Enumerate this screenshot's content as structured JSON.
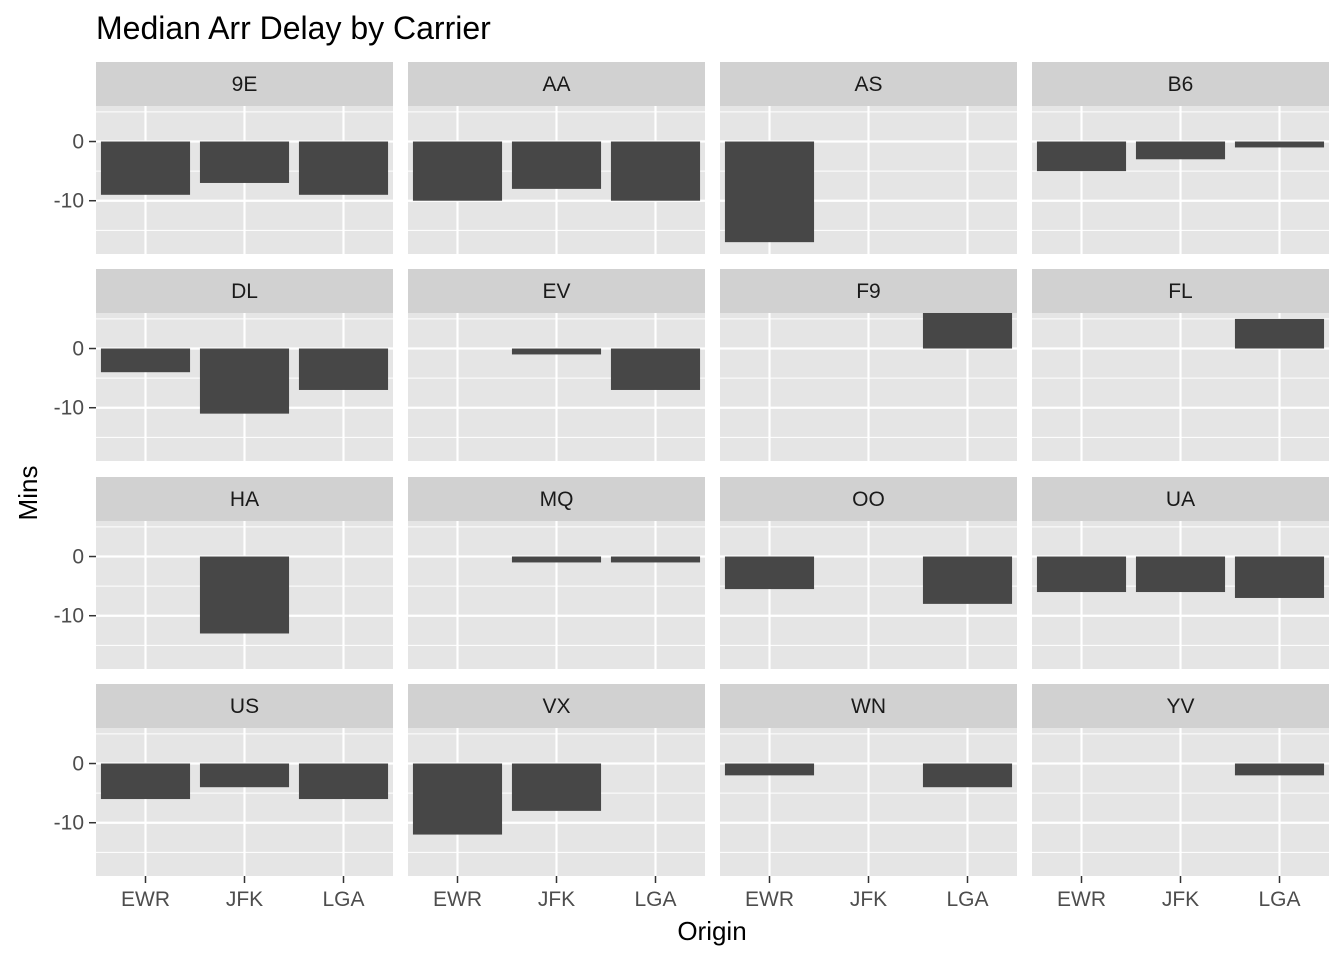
{
  "chart_data": {
    "type": "bar",
    "title": "Median Arr Delay by Carrier",
    "xlabel": "Origin",
    "ylabel": "Mins",
    "categories": [
      "EWR",
      "JFK",
      "LGA"
    ],
    "y_ticks": [
      -10,
      0
    ],
    "ylim": [
      -19,
      6
    ],
    "facet_layout": "4x4 grid",
    "bar_color": "#474747",
    "panel_background": "#e5e5e5",
    "strip_background": "#d1d1d1",
    "grid": true,
    "panels": [
      {
        "carrier": "9E",
        "values": [
          -9,
          -7,
          -9
        ]
      },
      {
        "carrier": "AA",
        "values": [
          -10,
          -8,
          -10
        ]
      },
      {
        "carrier": "AS",
        "values": [
          -17,
          null,
          null
        ]
      },
      {
        "carrier": "B6",
        "values": [
          -5,
          -3,
          -1
        ]
      },
      {
        "carrier": "DL",
        "values": [
          -4,
          -11,
          -7
        ]
      },
      {
        "carrier": "EV",
        "values": [
          null,
          -1,
          -7
        ]
      },
      {
        "carrier": "F9",
        "values": [
          null,
          null,
          6
        ]
      },
      {
        "carrier": "FL",
        "values": [
          null,
          null,
          5
        ]
      },
      {
        "carrier": "HA",
        "values": [
          null,
          -13,
          null
        ]
      },
      {
        "carrier": "MQ",
        "values": [
          null,
          -1,
          -1
        ]
      },
      {
        "carrier": "OO",
        "values": [
          -5.5,
          null,
          -8
        ]
      },
      {
        "carrier": "UA",
        "values": [
          -6,
          -6,
          -7
        ]
      },
      {
        "carrier": "US",
        "values": [
          -6,
          -4,
          -6
        ]
      },
      {
        "carrier": "VX",
        "values": [
          -12,
          -8,
          null
        ]
      },
      {
        "carrier": "WN",
        "values": [
          -2,
          null,
          -4
        ]
      },
      {
        "carrier": "YV",
        "values": [
          null,
          null,
          -2
        ]
      }
    ]
  }
}
